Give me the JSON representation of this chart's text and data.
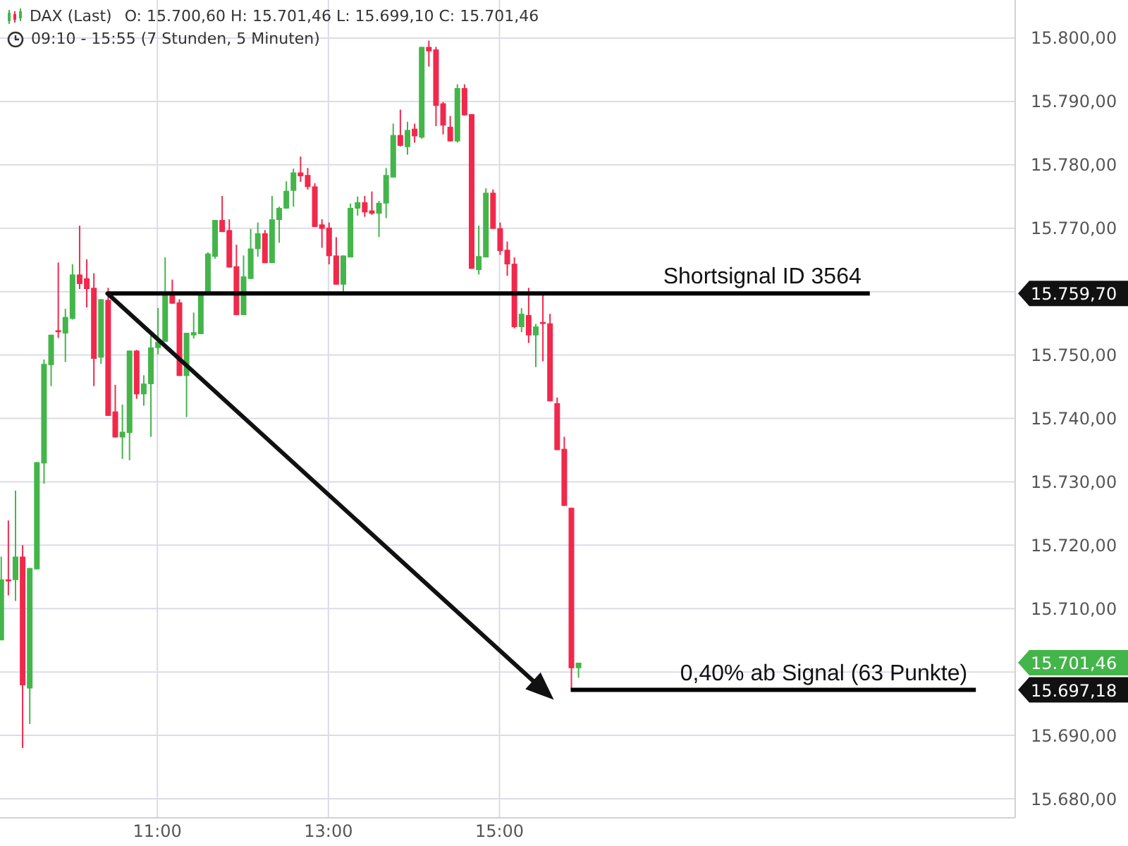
{
  "chart_data": {
    "type": "candlestick",
    "title": "DAX (Last)",
    "subtitle": "09:10 - 15:55 (7 Stunden, 5 Minuten)",
    "x": [
      9.1667,
      9.25,
      9.3333,
      9.4167,
      9.5,
      9.5833,
      9.6667,
      9.75,
      9.8333,
      9.9167,
      10,
      10.0833,
      10.1667,
      10.25,
      10.3333,
      10.4167,
      10.5,
      10.5833,
      10.6667,
      10.75,
      10.8333,
      10.9167,
      11,
      11.0833,
      11.1667,
      11.25,
      11.3333,
      11.4167,
      11.5,
      11.5833,
      11.6667,
      11.75,
      11.8333,
      11.9167,
      12,
      12.0833,
      12.1667,
      12.25,
      12.3333,
      12.4167,
      12.5,
      12.5833,
      12.6667,
      12.75,
      12.8333,
      12.9167,
      13,
      13.0833,
      13.1667,
      13.25,
      13.3333,
      13.4167,
      13.5,
      13.5833,
      13.6667,
      13.75,
      13.8333,
      13.9167,
      14,
      14.0833,
      14.1667,
      14.25,
      14.3333,
      14.4167,
      14.5,
      14.5833,
      14.6667,
      14.75,
      14.8333,
      14.9167,
      15,
      15.0833,
      15.1667,
      15.25,
      15.3333,
      15.4167,
      15.5,
      15.5833,
      15.6667,
      15.75,
      15.8333,
      15.9167
    ],
    "ohlc": [
      [
        15705.0,
        15718.2,
        15705.0,
        15714.6
      ],
      [
        15714.6,
        15723.9,
        15712.1,
        15714.3
      ],
      [
        15714.5,
        15728.6,
        15711.2,
        15718.2
      ],
      [
        15718.2,
        15720.0,
        15688.0,
        15697.9
      ],
      [
        15697.4,
        15716.4,
        15691.8,
        15716.4
      ],
      [
        15716.2,
        15733.1,
        15716.2,
        15733.1
      ],
      [
        15732.9,
        15749.3,
        15729.7,
        15748.6
      ],
      [
        15748.4,
        15753.2,
        15745.1,
        15753.2
      ],
      [
        15753.9,
        15764.6,
        15752.7,
        15753.6
      ],
      [
        15753.4,
        15757.3,
        15748.9,
        15756.0
      ],
      [
        15755.7,
        15764.3,
        15755.6,
        15762.7
      ],
      [
        15762.7,
        15770.4,
        15760.4,
        15761.2
      ],
      [
        15762.1,
        15765.1,
        15757.5,
        15760.4
      ],
      [
        15760.6,
        15762.9,
        15745.1,
        15749.4
      ],
      [
        15749.6,
        15758.8,
        15748.6,
        15758.8
      ],
      [
        15758.7,
        15760.6,
        15740.4,
        15740.4
      ],
      [
        15741.1,
        15745.3,
        15737.0,
        15737.0
      ],
      [
        15737.0,
        15742.2,
        15733.6,
        15737.9
      ],
      [
        15737.7,
        15750.7,
        15733.4,
        15750.7
      ],
      [
        15750.7,
        15750.8,
        15743.1,
        15743.8
      ],
      [
        15743.8,
        15746.8,
        15742.0,
        15745.5
      ],
      [
        15745.4,
        15753.2,
        15737.1,
        15751.2
      ],
      [
        15751.1,
        15757.4,
        15750.1,
        15752.1
      ],
      [
        15752.1,
        15765.4,
        15752.1,
        15759.5
      ],
      [
        15759.5,
        15761.9,
        15758.1,
        15758.1
      ],
      [
        15758.3,
        15758.8,
        15746.7,
        15746.7
      ],
      [
        15746.7,
        15753.5,
        15740.2,
        15753.5
      ],
      [
        15753.1,
        15756.7,
        15752.6,
        15753.6
      ],
      [
        15753.3,
        15759.5,
        15753.3,
        15759.5
      ],
      [
        15759.9,
        15766.2,
        15759.9,
        15766.0
      ],
      [
        15765.5,
        15771.3,
        15765.2,
        15771.3
      ],
      [
        15771.3,
        15775.1,
        15769.4,
        15769.4
      ],
      [
        15769.7,
        15771.4,
        15763.8,
        15763.8
      ],
      [
        15764.0,
        15767.4,
        15756.3,
        15756.3
      ],
      [
        15756.3,
        15765.7,
        15756.3,
        15762.4
      ],
      [
        15762.0,
        15769.9,
        15762.0,
        15766.8
      ],
      [
        15766.7,
        15770.9,
        15765.5,
        15769.2
      ],
      [
        15769.2,
        15769.7,
        15764.5,
        15764.5
      ],
      [
        15764.5,
        15775.1,
        15764.5,
        15771.4
      ],
      [
        15771.3,
        15773.4,
        15767.7,
        15773.2
      ],
      [
        15773.1,
        15777.4,
        15773.1,
        15775.9
      ],
      [
        15775.9,
        15779.4,
        15773.4,
        15778.8
      ],
      [
        15778.8,
        15781.3,
        15777.3,
        15778.2
      ],
      [
        15778.4,
        15779.5,
        15776.1,
        15776.5
      ],
      [
        15776.6,
        15777.1,
        15770.2,
        15770.2
      ],
      [
        15770.6,
        15771.4,
        15766.9,
        15769.9
      ],
      [
        15770.1,
        15770.9,
        15764.3,
        15765.6
      ],
      [
        15765.7,
        15768.6,
        15761.1,
        15761.1
      ],
      [
        15761.1,
        15765.7,
        15760.0,
        15765.7
      ],
      [
        15765.4,
        15773.9,
        15765.4,
        15773.2
      ],
      [
        15773.1,
        15775.0,
        15772.0,
        15774.1
      ],
      [
        15774.1,
        15775.1,
        15771.8,
        15772.5
      ],
      [
        15772.8,
        15775.8,
        15772.1,
        15772.3
      ],
      [
        15772.3,
        15774.3,
        15768.6,
        15774.0
      ],
      [
        15773.9,
        15779.5,
        15771.6,
        15778.4
      ],
      [
        15778.0,
        15786.5,
        15778.0,
        15784.7
      ],
      [
        15784.7,
        15788.7,
        15782.9,
        15783.0
      ],
      [
        15782.8,
        15786.8,
        15781.6,
        15785.5
      ],
      [
        15785.7,
        15786.5,
        15783.5,
        15784.5
      ],
      [
        15784.3,
        15798.6,
        15784.1,
        15798.6
      ],
      [
        15798.6,
        15799.6,
        15795.5,
        15797.9
      ],
      [
        15798.2,
        15798.6,
        15786.1,
        15789.3
      ],
      [
        15789.7,
        15789.9,
        15784.8,
        15786.2
      ],
      [
        15786.0,
        15787.7,
        15783.7,
        15783.7
      ],
      [
        15783.7,
        15792.7,
        15783.5,
        15792.1
      ],
      [
        15792.1,
        15792.7,
        15787.8,
        15787.8
      ],
      [
        15788.0,
        15788.0,
        15763.6,
        15763.6
      ],
      [
        15763.4,
        15770.4,
        15762.7,
        15765.6
      ],
      [
        15765.4,
        15776.3,
        15765.4,
        15775.6
      ],
      [
        15775.6,
        15776.1,
        15769.9,
        15769.9
      ],
      [
        15770.0,
        15770.9,
        15765.8,
        15766.4
      ],
      [
        15766.6,
        15767.9,
        15762.5,
        15764.3
      ],
      [
        15764.4,
        15765.4,
        15754.2,
        15754.4
      ],
      [
        15754.4,
        15757.4,
        15753.6,
        15756.5
      ],
      [
        15756.3,
        15760.6,
        15751.9,
        15753.1
      ],
      [
        15753.1,
        15754.9,
        15748.1,
        15754.5
      ],
      [
        15755.2,
        15759.5,
        15749.0,
        15754.9
      ],
      [
        15755.0,
        15756.5,
        15742.7,
        15742.7
      ],
      [
        15742.4,
        15743.3,
        15735.0,
        15735.0
      ],
      [
        15735.2,
        15737.1,
        15726.2,
        15726.2
      ],
      [
        15725.9,
        15725.9,
        15697.18,
        15700.6
      ],
      [
        15700.6,
        15701.46,
        15699.1,
        15701.46
      ]
    ],
    "colors": [
      "#44b54a",
      "#f0294c",
      "#44b54a",
      "#f0294c",
      "#44b54a",
      "#44b54a",
      "#44b54a",
      "#44b54a",
      "#f0294c",
      "#44b54a",
      "#44b54a",
      "#f0294c",
      "#f0294c",
      "#f0294c",
      "#44b54a",
      "#f0294c",
      "#f0294c",
      "#44b54a",
      "#44b54a",
      "#f0294c",
      "#44b54a",
      "#44b54a",
      "#44b54a",
      "#44b54a",
      "#f0294c",
      "#f0294c",
      "#44b54a",
      "#44b54a",
      "#44b54a",
      "#44b54a",
      "#44b54a",
      "#f0294c",
      "#f0294c",
      "#f0294c",
      "#44b54a",
      "#44b54a",
      "#44b54a",
      "#f0294c",
      "#44b54a",
      "#44b54a",
      "#44b54a",
      "#44b54a",
      "#f0294c",
      "#f0294c",
      "#f0294c",
      "#f0294c",
      "#f0294c",
      "#f0294c",
      "#44b54a",
      "#44b54a",
      "#44b54a",
      "#f0294c",
      "#f0294c",
      "#44b54a",
      "#44b54a",
      "#44b54a",
      "#f0294c",
      "#44b54a",
      "#f0294c",
      "#44b54a",
      "#f0294c",
      "#f0294c",
      "#f0294c",
      "#f0294c",
      "#44b54a",
      "#f0294c",
      "#f0294c",
      "#44b54a",
      "#44b54a",
      "#f0294c",
      "#f0294c",
      "#f0294c",
      "#f0294c",
      "#44b54a",
      "#f0294c",
      "#44b54a",
      "#f0294c",
      "#f0294c",
      "#f0294c",
      "#f0294c",
      "#f0294c",
      "#44b54a"
    ],
    "series": [
      {
        "type": "line",
        "color": "#000000",
        "x": [
          10.4167,
          19.33
        ],
        "values": [
          15759.7,
          15759.7
        ]
      },
      {
        "type": "line",
        "color": "#000000",
        "x": [
          15.8333,
          20.57
        ],
        "values": [
          15697.18,
          15697.18
        ]
      }
    ],
    "annotations": [
      "O: 15.700,60 H: 15.701,46 L: 15.699,10 C: 15.701,46",
      {
        "text": "Shortsignal ID 3564",
        "x": 19.33,
        "y": 15759.7
      },
      {
        "text": "0,40% ab Signal (63 Punkte)",
        "x": 20.57,
        "y": 15697.18
      }
    ],
    "xlim": [
      9.16,
      21.03
    ],
    "xticks": [
      {
        "value": 11,
        "label": "11:00"
      },
      {
        "value": 13,
        "label": "13:00"
      },
      {
        "value": 15,
        "label": "15:00"
      }
    ],
    "ylim": [
      15677,
      15806
    ],
    "yticks": [
      {
        "value": 15680,
        "label": "15.680,00"
      },
      {
        "value": 15690,
        "label": "15.690,00"
      },
      {
        "value": 15700,
        "label": null
      },
      {
        "value": 15710,
        "label": "15.710,00"
      },
      {
        "value": 15720,
        "label": "15.720,00"
      },
      {
        "value": 15730,
        "label": "15.730,00"
      },
      {
        "value": 15740,
        "label": "15.740,00"
      },
      {
        "value": 15750,
        "label": "15.750,00"
      },
      {
        "value": 15760,
        "label": null
      },
      {
        "value": 15770,
        "label": "15.770,00"
      },
      {
        "value": 15780,
        "label": "15.780,00"
      },
      {
        "value": 15790,
        "label": "15.790,00"
      },
      {
        "value": 15800,
        "label": "15.800,00"
      }
    ],
    "y2lim": [
      15677,
      15806
    ],
    "y2ticks": [
      {
        "value": 15697.18,
        "label": "15.697,18"
      },
      {
        "value": 15701.46,
        "label": "15.701,46"
      },
      {
        "value": 15759.7,
        "label": "15.759,70"
      }
    ],
    "grid": true
  }
}
